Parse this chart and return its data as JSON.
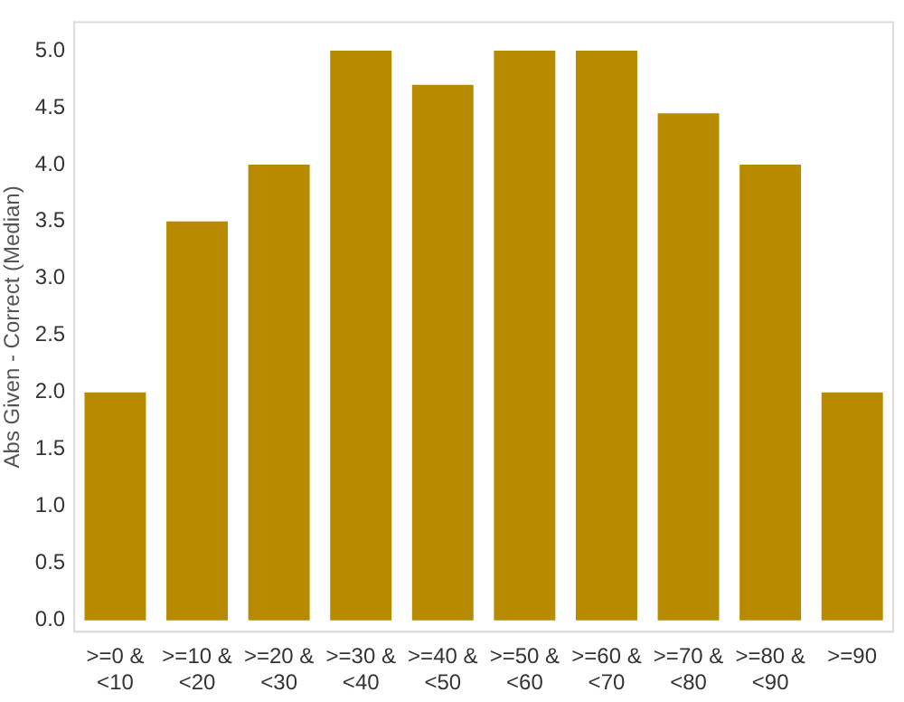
{
  "chart_data": {
    "type": "bar",
    "ylabel": "Abs Given - Correct (Median)",
    "categories": [
      ">=0 & <10",
      ">=10 & <20",
      ">=20 & <30",
      ">=30 & <40",
      ">=40 & <50",
      ">=50 & <60",
      ">=60 & <70",
      ">=70 & <80",
      ">=80 & <90",
      ">=90"
    ],
    "values": [
      2.0,
      3.5,
      4.0,
      5.0,
      4.7,
      5.0,
      5.0,
      4.45,
      4.0,
      2.0
    ],
    "color": "#b88a00",
    "ylim": [
      -0.1,
      5.25
    ],
    "yticks": [
      {
        "value": 0,
        "label": "0.0"
      },
      0.5,
      {
        "value": 1,
        "label": "1.0"
      },
      1.5,
      {
        "value": 2,
        "label": "2.0"
      },
      2.5,
      {
        "value": 3,
        "label": "3.0"
      },
      3.5,
      {
        "value": 4,
        "label": "4.0"
      },
      4.5,
      {
        "value": 5,
        "label": "5.0"
      }
    ],
    "grid": false,
    "legend": false
  }
}
